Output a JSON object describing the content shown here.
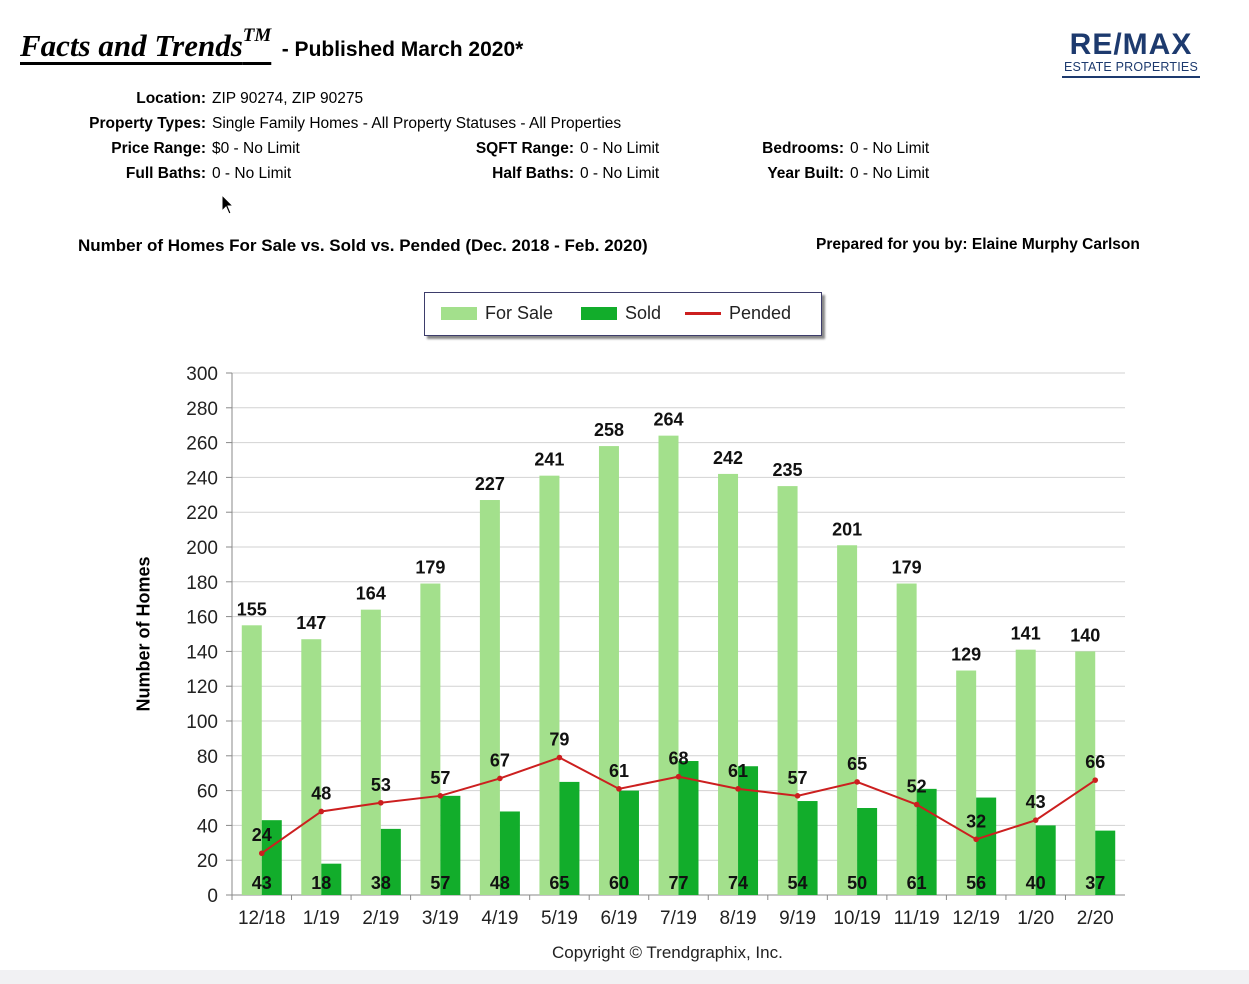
{
  "header": {
    "title": "Facts and Trends",
    "title_tm": "TM",
    "subtitle": "- Published March 2020*"
  },
  "logo": {
    "main": "RE/MAX",
    "sub": "ESTATE PROPERTIES",
    "color": "#1d3a6e"
  },
  "criteria": {
    "location_label": "Location:",
    "location_value": "ZIP 90274, ZIP 90275",
    "types_label": "Property Types:",
    "types_value": "Single Family Homes - All Property Statuses - All Properties",
    "price_label": "Price Range:",
    "price_value": "$0 - No Limit",
    "sqft_label": "SQFT Range:",
    "sqft_value": "0 - No Limit",
    "bedrooms_label": "Bedrooms:",
    "bedrooms_value": "0 - No Limit",
    "fullbaths_label": "Full Baths:",
    "fullbaths_value": "0 - No Limit",
    "halfbaths_label": "Half Baths:",
    "halfbaths_value": "0 - No Limit",
    "yearbuilt_label": "Year Built:",
    "yearbuilt_value": "0 - No Limit"
  },
  "chart_title": "Number of Homes For Sale vs. Sold vs. Pended (Dec. 2018 - Feb. 2020)",
  "prepared_by": "Prepared for you by: Elaine Murphy Carlson",
  "copyright": "Copyright © Trendgraphix, Inc.",
  "chart_data": {
    "type": "bar",
    "title": "Number of Homes For Sale vs. Sold vs. Pended (Dec. 2018 - Feb. 2020)",
    "xlabel": "",
    "ylabel": "Number of Homes",
    "ylim": [
      0,
      300
    ],
    "ytick_step": 20,
    "grid": true,
    "legend_position": "top-center",
    "categories": [
      "12/18",
      "1/19",
      "2/19",
      "3/19",
      "4/19",
      "5/19",
      "6/19",
      "7/19",
      "8/19",
      "9/19",
      "10/19",
      "11/19",
      "12/19",
      "1/20",
      "2/20"
    ],
    "series": [
      {
        "name": "For Sale",
        "kind": "bar",
        "color": "#a3e08c",
        "values": [
          155,
          147,
          164,
          179,
          227,
          241,
          258,
          264,
          242,
          235,
          201,
          179,
          129,
          141,
          140
        ]
      },
      {
        "name": "Sold",
        "kind": "bar",
        "color": "#12ad2b",
        "values": [
          43,
          18,
          38,
          57,
          48,
          65,
          60,
          77,
          74,
          54,
          50,
          61,
          56,
          40,
          37
        ]
      },
      {
        "name": "Pended",
        "kind": "line",
        "color": "#cc1f1f",
        "values": [
          24,
          48,
          53,
          57,
          67,
          79,
          61,
          68,
          61,
          57,
          65,
          52,
          32,
          43,
          66
        ]
      }
    ]
  }
}
